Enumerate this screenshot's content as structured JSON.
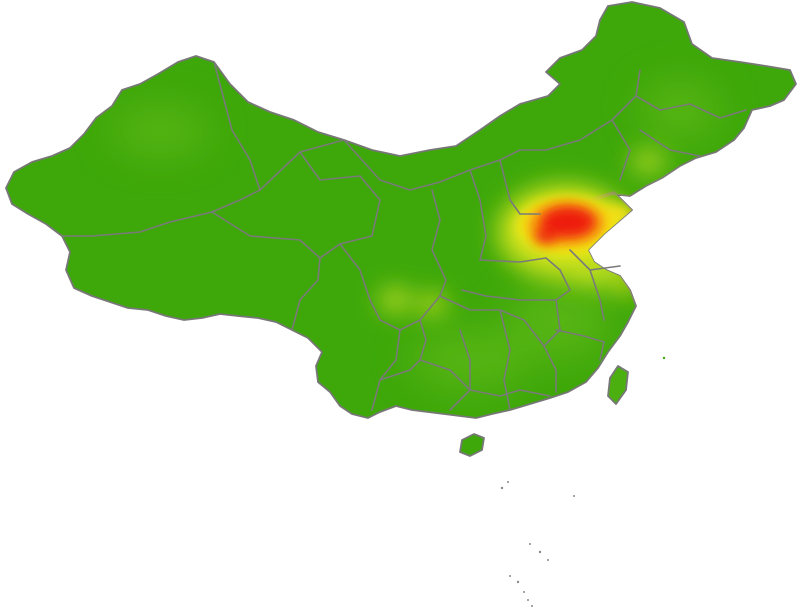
{
  "map": {
    "type": "heatmap",
    "colors": {
      "background": "#ffffff",
      "base": "#3ea80a",
      "low": "#6fc21a",
      "mid": "#f2ea14",
      "high": "#f7a80c",
      "peak": "#ee1a08",
      "border": "#777777"
    }
  }
}
